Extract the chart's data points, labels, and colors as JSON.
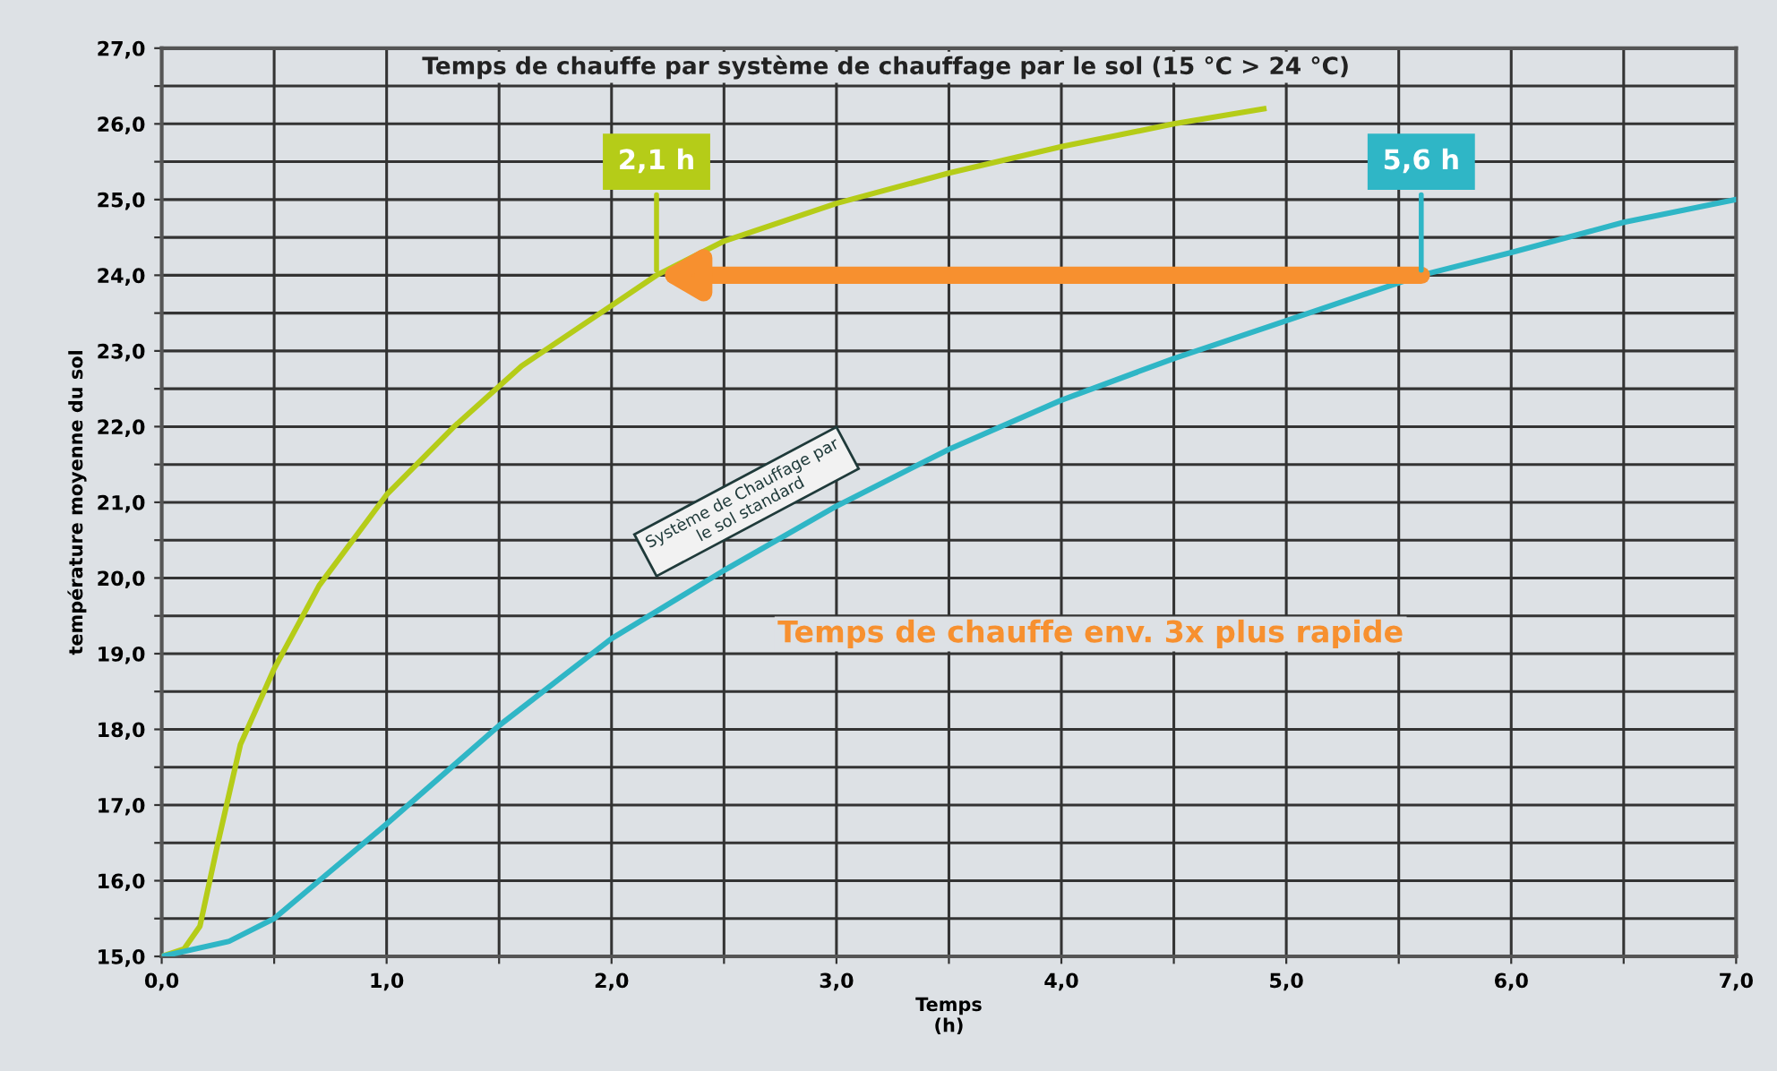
{
  "chart_data": {
    "type": "line",
    "title": "Temps de chauffe par système de chauffage par le sol (15 °C > 24 °C)",
    "xlabel": "Temps\n(h)",
    "ylabel": "température moyenne du sol",
    "series": [
      {
        "color": "#b5cc18",
        "x": [
          0,
          0.1,
          0.17,
          0.25,
          0.35,
          0.5,
          0.7,
          1.0,
          1.3,
          1.6,
          2.0,
          2.2,
          2.5,
          3.0,
          3.5,
          4.0,
          4.5,
          4.9
        ],
        "values": [
          15.0,
          15.1,
          15.4,
          16.5,
          17.8,
          18.8,
          19.9,
          21.1,
          22.0,
          22.8,
          23.6,
          24.0,
          24.45,
          24.95,
          25.35,
          25.7,
          26.0,
          26.2
        ]
      },
      {
        "name": "Système de Chauffage par\nle sol standard",
        "color": "#2fb6c6",
        "x": [
          0,
          0.3,
          0.5,
          0.7,
          1.0,
          1.5,
          2.0,
          2.5,
          3.0,
          3.5,
          4.0,
          4.5,
          5.0,
          5.6,
          6.0,
          6.5,
          7.0
        ],
        "values": [
          15.0,
          15.2,
          15.5,
          16.0,
          16.75,
          18.05,
          19.2,
          20.1,
          20.95,
          21.7,
          22.35,
          22.9,
          23.4,
          24.0,
          24.3,
          24.7,
          25.0
        ]
      }
    ],
    "annotations": [
      {
        "text": "2,1 h",
        "x": 2.2,
        "y": 24.0
      },
      {
        "text": "5,6 h",
        "x": 5.6,
        "y": 24.0
      },
      "Temps de chauffe env. 3x plus rapide"
    ],
    "xlim": [
      0,
      7
    ],
    "ylim": [
      15,
      27
    ],
    "xticks": [
      {
        "value": 0,
        "label": "0,0"
      },
      {
        "value": 0.5,
        "label": null
      },
      {
        "value": 1,
        "label": "1,0"
      },
      {
        "value": 1.5,
        "label": null
      },
      {
        "value": 2,
        "label": "2,0"
      },
      {
        "value": 2.5,
        "label": null
      },
      {
        "value": 3,
        "label": "3,0"
      },
      {
        "value": 3.5,
        "label": null
      },
      {
        "value": 4,
        "label": "4,0"
      },
      {
        "value": 4.5,
        "label": null
      },
      {
        "value": 5,
        "label": "5,0"
      },
      {
        "value": 5.5,
        "label": null
      },
      {
        "value": 6,
        "label": "6,0"
      },
      {
        "value": 6.5,
        "label": null
      },
      {
        "value": 7,
        "label": "7,0"
      }
    ],
    "yticks": [
      {
        "value": 15,
        "label": "15,0"
      },
      {
        "value": 15.5,
        "label": null
      },
      {
        "value": 16,
        "label": "16,0"
      },
      {
        "value": 16.5,
        "label": null
      },
      {
        "value": 17,
        "label": "17,0"
      },
      {
        "value": 17.5,
        "label": null
      },
      {
        "value": 18,
        "label": "18,0"
      },
      {
        "value": 18.5,
        "label": null
      },
      {
        "value": 19,
        "label": "19,0"
      },
      {
        "value": 19.5,
        "label": null
      },
      {
        "value": 20,
        "label": "20,0"
      },
      {
        "value": 20.5,
        "label": null
      },
      {
        "value": 21,
        "label": "21,0"
      },
      {
        "value": 21.5,
        "label": null
      },
      {
        "value": 22,
        "label": "22,0"
      },
      {
        "value": 22.5,
        "label": null
      },
      {
        "value": 23,
        "label": "23,0"
      },
      {
        "value": 23.5,
        "label": null
      },
      {
        "value": 24,
        "label": "24,0"
      },
      {
        "value": 24.5,
        "label": null
      },
      {
        "value": 25,
        "label": "25,0"
      },
      {
        "value": 25.5,
        "label": null
      },
      {
        "value": 26,
        "label": "26,0"
      },
      {
        "value": 26.5,
        "label": null
      },
      {
        "value": 27,
        "label": "27,0"
      }
    ],
    "grid": true,
    "marker": "none",
    "line_style": "solid"
  }
}
